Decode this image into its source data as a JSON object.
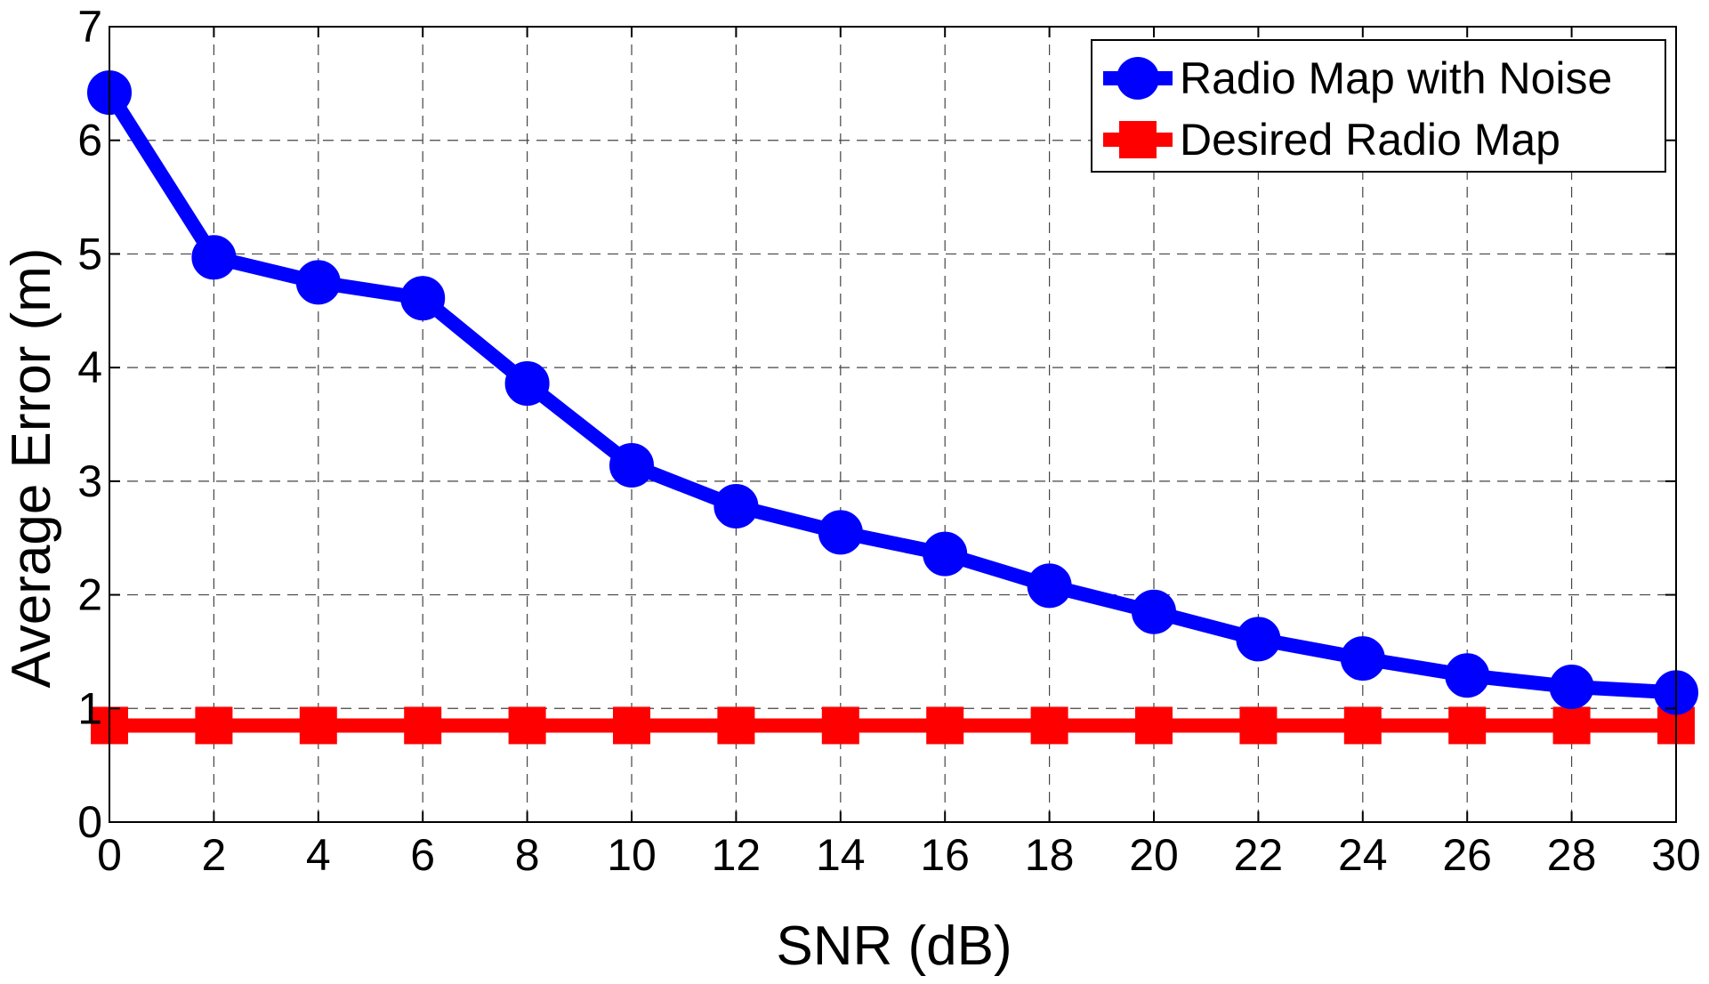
{
  "chart_data": {
    "type": "line",
    "xlabel": "SNR (dB)",
    "ylabel": "Average Error (m)",
    "xlim": [
      0,
      30
    ],
    "ylim": [
      0,
      7
    ],
    "xticks": [
      "0",
      "2",
      "4",
      "6",
      "8",
      "10",
      "12",
      "14",
      "16",
      "18",
      "20",
      "22",
      "24",
      "26",
      "28",
      "30"
    ],
    "yticks": [
      "0",
      "1",
      "2",
      "3",
      "4",
      "5",
      "6",
      "7"
    ],
    "grid": true,
    "legend_position": "top-right",
    "x": [
      0,
      2,
      4,
      6,
      8,
      10,
      12,
      14,
      16,
      18,
      20,
      22,
      24,
      26,
      28,
      30
    ],
    "series": [
      {
        "name": "Radio Map with Noise",
        "color": "#0000ff",
        "marker": "circle",
        "values": [
          6.42,
          4.97,
          4.75,
          4.61,
          3.86,
          3.14,
          2.78,
          2.55,
          2.36,
          2.08,
          1.85,
          1.61,
          1.44,
          1.29,
          1.19,
          1.14
        ]
      },
      {
        "name": "Desired Radio Map",
        "color": "#ff0000",
        "marker": "square",
        "values": [
          0.85,
          0.85,
          0.85,
          0.85,
          0.85,
          0.85,
          0.85,
          0.85,
          0.85,
          0.85,
          0.85,
          0.85,
          0.85,
          0.85,
          0.85,
          0.85
        ]
      }
    ]
  }
}
